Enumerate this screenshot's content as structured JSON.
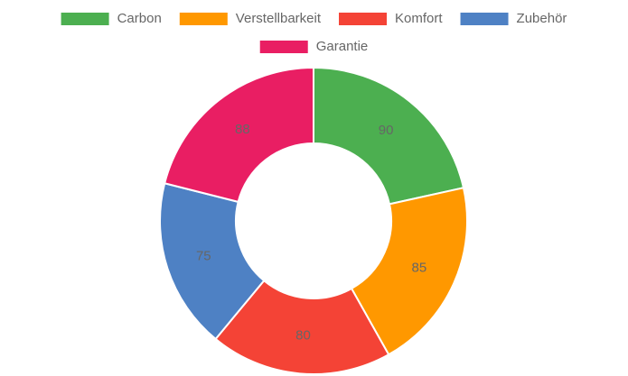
{
  "chart_data": {
    "type": "doughnut",
    "categories": [
      "Carbon",
      "Verstellbarkeit",
      "Komfort",
      "Zubehör",
      "Garantie"
    ],
    "values": [
      90,
      85,
      80,
      75,
      88
    ],
    "colors": [
      "#4caf50",
      "#ff9800",
      "#f44336",
      "#4e81c4",
      "#e91e63"
    ],
    "legend": "top"
  }
}
